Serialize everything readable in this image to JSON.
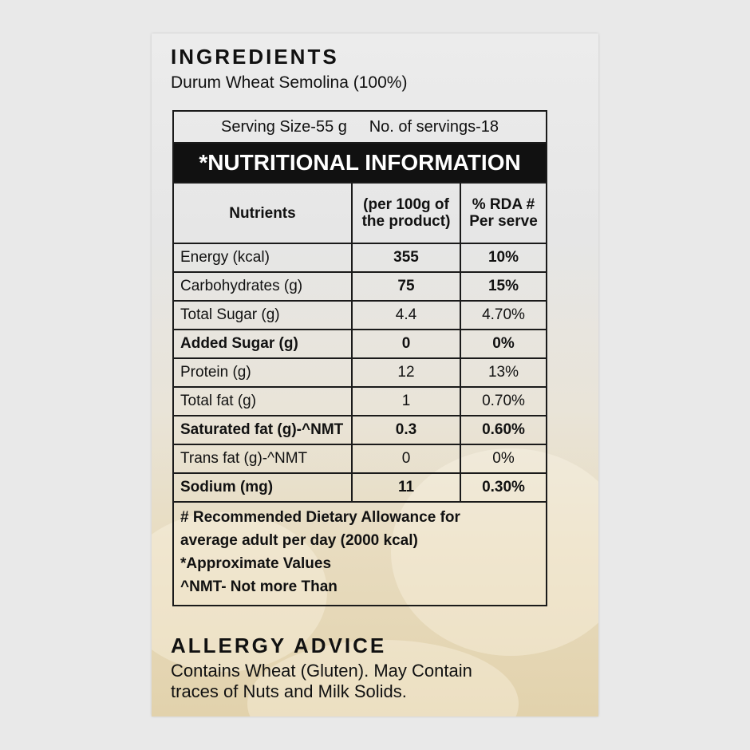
{
  "ingredients": {
    "heading": "INGREDIENTS",
    "text": "Durum Wheat Semolina (100%)"
  },
  "nutrition": {
    "serving_size": "Serving Size-55 g",
    "servings": "No. of servings-18",
    "title": "*NUTRITIONAL INFORMATION",
    "columns": [
      "Nutrients",
      "(per 100g of the product)",
      "% RDA # Per serve"
    ],
    "rows": [
      {
        "name": "Energy (kcal)",
        "per100": "355",
        "rda": "10%",
        "bold_label": false,
        "bold_values": true
      },
      {
        "name": "Carbohydrates (g)",
        "per100": "75",
        "rda": "15%",
        "bold_label": false,
        "bold_values": true
      },
      {
        "name": "Total Sugar (g)",
        "per100": "4.4",
        "rda": "4.70%",
        "bold_label": false,
        "bold_values": false
      },
      {
        "name": "Added Sugar (g)",
        "per100": "0",
        "rda": "0%",
        "bold_label": true,
        "bold_values": true
      },
      {
        "name": "Protein (g)",
        "per100": "12",
        "rda": "13%",
        "bold_label": false,
        "bold_values": false
      },
      {
        "name": "Total fat (g)",
        "per100": "1",
        "rda": "0.70%",
        "bold_label": false,
        "bold_values": false
      },
      {
        "name": "Saturated fat (g)-^NMT",
        "per100": "0.3",
        "rda": "0.60%",
        "bold_label": true,
        "bold_values": true
      },
      {
        "name": "Trans fat (g)-^NMT",
        "per100": "0",
        "rda": "0%",
        "bold_label": false,
        "bold_values": false
      },
      {
        "name": "Sodium (mg)",
        "per100": "11",
        "rda": "0.30%",
        "bold_label": true,
        "bold_values": true
      }
    ],
    "footnotes": [
      "# Recommended Dietary Allowance for",
      "average adult per day (2000 kcal)",
      "*Approximate Values",
      "^NMT- Not more Than"
    ]
  },
  "allergy": {
    "heading": "ALLERGY ADVICE",
    "lines": [
      "Contains Wheat (Gluten). May Contain",
      "traces of  Nuts and Milk Solids."
    ]
  }
}
